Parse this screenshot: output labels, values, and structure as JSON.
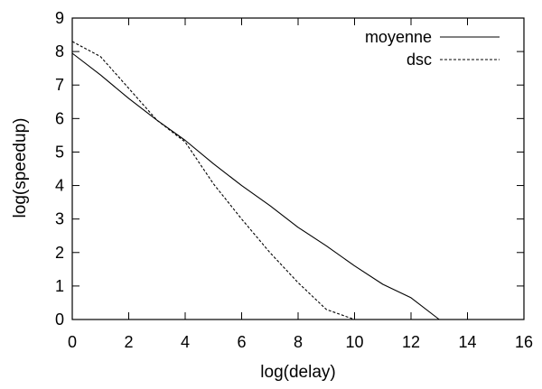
{
  "chart_data": {
    "type": "line",
    "xlabel": "log(delay)",
    "ylabel": "log(speedup)",
    "xlim": [
      0,
      16
    ],
    "ylim": [
      0,
      9
    ],
    "xticks": [
      0,
      2,
      4,
      6,
      8,
      10,
      12,
      14,
      16
    ],
    "yticks": [
      0,
      1,
      2,
      3,
      4,
      5,
      6,
      7,
      8,
      9
    ],
    "grid": false,
    "legend_position": "top-right",
    "series": [
      {
        "name": "moyenne",
        "style": "solid",
        "x": [
          0,
          1,
          2,
          3,
          4,
          5,
          6,
          7,
          8,
          9,
          10,
          11,
          12,
          13,
          14,
          15
        ],
        "y": [
          7.95,
          7.3,
          6.6,
          5.95,
          5.35,
          4.65,
          4.0,
          3.4,
          2.75,
          2.2,
          1.6,
          1.05,
          0.65,
          0,
          0,
          0
        ]
      },
      {
        "name": "dsc",
        "style": "dashed",
        "x": [
          0,
          1,
          2,
          3,
          4,
          5,
          6,
          7,
          8,
          9,
          10,
          11,
          12,
          13,
          14,
          15
        ],
        "y": [
          8.3,
          7.85,
          6.9,
          5.95,
          5.3,
          4.05,
          3.0,
          2.0,
          1.1,
          0.3,
          0,
          0,
          0,
          0,
          0,
          0
        ]
      }
    ]
  }
}
